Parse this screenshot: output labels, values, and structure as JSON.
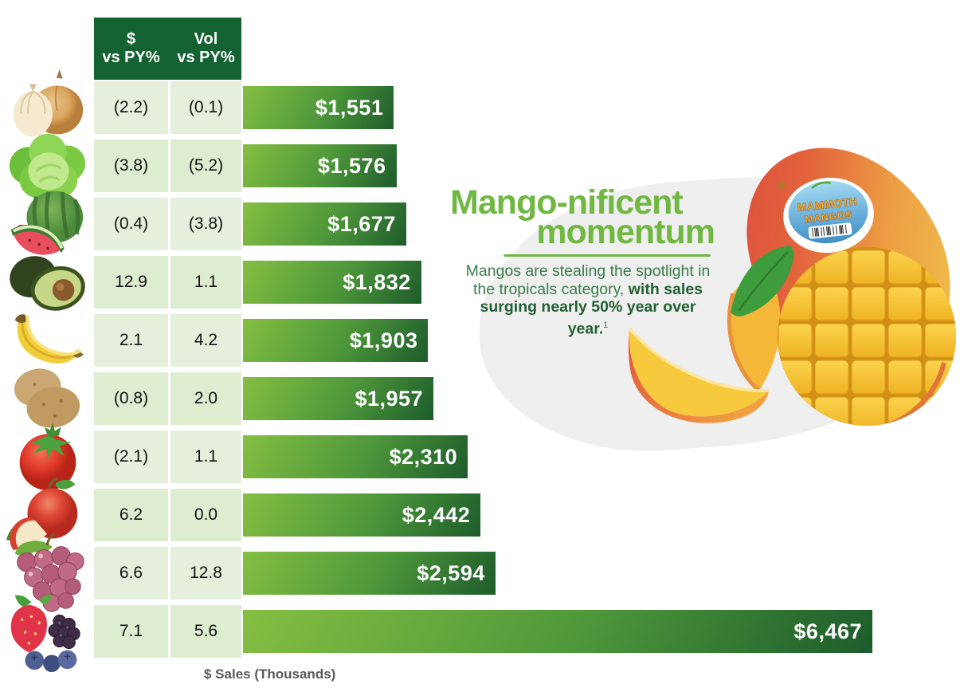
{
  "table": {
    "headers": [
      {
        "line1": "$",
        "line2": "vs PY%"
      },
      {
        "line1": "Vol",
        "line2": "vs PY%"
      }
    ],
    "rows": [
      {
        "icon": "onion-icon",
        "dollar_vs_py": "(2.2)",
        "vol_vs_py": "(0.1)",
        "sales_label": "$1,551",
        "sales": 1551
      },
      {
        "icon": "lettuce-icon",
        "dollar_vs_py": "(3.8)",
        "vol_vs_py": "(5.2)",
        "sales_label": "$1,576",
        "sales": 1576
      },
      {
        "icon": "watermelon-icon",
        "dollar_vs_py": "(0.4)",
        "vol_vs_py": "(3.8)",
        "sales_label": "$1,677",
        "sales": 1677
      },
      {
        "icon": "avocado-icon",
        "dollar_vs_py": "12.9",
        "vol_vs_py": "1.1",
        "sales_label": "$1,832",
        "sales": 1832
      },
      {
        "icon": "banana-icon",
        "dollar_vs_py": "2.1",
        "vol_vs_py": "4.2",
        "sales_label": "$1,903",
        "sales": 1903
      },
      {
        "icon": "potato-icon",
        "dollar_vs_py": "(0.8)",
        "vol_vs_py": "2.0",
        "sales_label": "$1,957",
        "sales": 1957
      },
      {
        "icon": "tomato-icon",
        "dollar_vs_py": "(2.1)",
        "vol_vs_py": "1.1",
        "sales_label": "$2,310",
        "sales": 2310
      },
      {
        "icon": "apple-icon",
        "dollar_vs_py": "6.2",
        "vol_vs_py": "0.0",
        "sales_label": "$2,442",
        "sales": 2442
      },
      {
        "icon": "grapes-icon",
        "dollar_vs_py": "6.6",
        "vol_vs_py": "12.8",
        "sales_label": "$2,594",
        "sales": 2594
      },
      {
        "icon": "berries-icon",
        "dollar_vs_py": "7.1",
        "vol_vs_py": "5.6",
        "sales_label": "$6,467",
        "sales": 6467
      }
    ],
    "axis_label": "$ Sales (Thousands)"
  },
  "callout": {
    "title_line1": "Mango-nificent",
    "title_line2": "momentum",
    "body_regular": "Mangos are stealing the spotlight in the tropicals category, ",
    "body_bold": "with sales surging nearly 50% year over year.",
    "footnote_marker": "1"
  },
  "mango_graphic": {
    "sticker_line1": "MAMMOTH",
    "sticker_line2": "MANGOS"
  },
  "chart_data": {
    "type": "bar",
    "orientation": "horizontal",
    "categories": [
      "onion",
      "lettuce",
      "watermelon",
      "avocado",
      "banana",
      "potato",
      "tomato",
      "apple",
      "grapes",
      "mixed-berries"
    ],
    "series": [
      {
        "name": "$ Sales (Thousands)",
        "values": [
          1551,
          1576,
          1677,
          1832,
          1903,
          1957,
          2310,
          2442,
          2594,
          6467
        ],
        "labels": [
          "$1,551",
          "$1,576",
          "$1,677",
          "$1,832",
          "$1,903",
          "$1,957",
          "$2,310",
          "$2,442",
          "$2,594",
          "$6,467"
        ]
      },
      {
        "name": "$ vs PY%",
        "values": [
          -2.2,
          -3.8,
          -0.4,
          12.9,
          2.1,
          -0.8,
          -2.1,
          6.2,
          6.6,
          7.1
        ]
      },
      {
        "name": "Vol vs PY%",
        "values": [
          -0.1,
          -5.2,
          -3.8,
          1.1,
          4.2,
          2.0,
          1.1,
          0.0,
          12.8,
          5.6
        ]
      }
    ],
    "xlabel": "$ Sales (Thousands)",
    "xlim": [
      0,
      6467
    ],
    "grid": false,
    "legend": false,
    "note": "negative values shown in parentheses"
  },
  "colors": {
    "header_green": "#146232",
    "cell_green": "#e5efdc",
    "cell_green_alt": "#deecd0",
    "bar_light": "#85bf42",
    "bar_mid": "#4d963a",
    "bar_dark": "#1d5c2b",
    "title_green": "#71b843",
    "body_green": "#3a7c4b",
    "body_green_bold": "#235f34",
    "axis_gray": "#58595b",
    "blob_gray": "#efefef"
  }
}
